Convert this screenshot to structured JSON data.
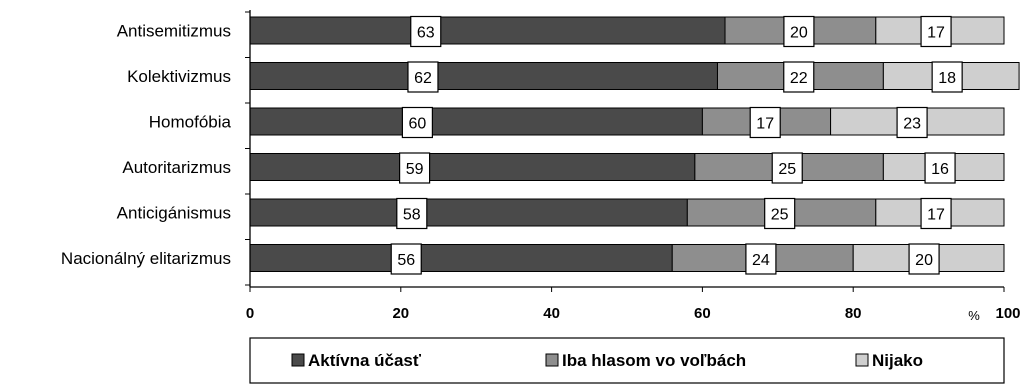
{
  "chart_data": {
    "type": "bar",
    "orientation": "horizontal",
    "stacked": true,
    "categories": [
      "Antisemitizmus",
      "Kolektivizmus",
      "Homofóbia",
      "Autoritarizmus",
      "Anticigánismus",
      "Nacionálný elitarizmus"
    ],
    "series": [
      {
        "name": "Aktívna účasť",
        "values": [
          63,
          62,
          60,
          59,
          58,
          56
        ],
        "color": "#4a4a4a"
      },
      {
        "name": "Iba hlasom vo voľbách",
        "values": [
          20,
          22,
          17,
          25,
          25,
          24
        ],
        "color": "#8e8e8e"
      },
      {
        "name": "Nijako",
        "values": [
          17,
          18,
          23,
          16,
          17,
          20
        ],
        "color": "#cfcfcf"
      }
    ],
    "xlim": [
      0,
      100
    ],
    "xticks": [
      "0",
      "20",
      "40",
      "60",
      "80",
      "100"
    ],
    "xlabel": "%",
    "legend_position": "bottom",
    "grid": false
  }
}
